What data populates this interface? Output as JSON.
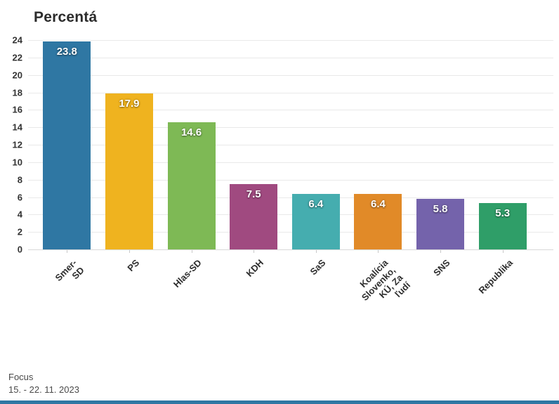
{
  "title": "Percentá",
  "footer": {
    "source": "Focus",
    "date_range": "15. - 22. 11. 2023"
  },
  "colors": {
    "title_text": "#2b2b2b",
    "axis_text": "#333333",
    "gridline": "#e9e9e9",
    "baseline": "#d8d8d8",
    "footer_text": "#4a4a4a",
    "bottom_accent_bar": "#2f77a3"
  },
  "chart_data": {
    "type": "bar",
    "title": "Percentá",
    "categories": [
      "Smer-SD",
      "PS",
      "Hlas-SD",
      "KDH",
      "SaS",
      "Koalícia Slovenko, KÚ, Za\nľudí",
      "SNS",
      "Republika"
    ],
    "values": [
      23.8,
      17.9,
      14.6,
      7.5,
      6.4,
      6.4,
      5.8,
      5.3
    ],
    "value_labels": [
      "23.8",
      "17.9",
      "14.6",
      "7.5",
      "6.4",
      "6.4",
      "5.8",
      "5.3"
    ],
    "bar_colors": [
      "#2f77a3",
      "#efb31f",
      "#7eb955",
      "#a04a80",
      "#45adaf",
      "#e18a28",
      "#7463ab",
      "#2f9e68"
    ],
    "xlabel": "",
    "ylabel": "",
    "ylim": [
      0,
      24
    ],
    "yticks": [
      0,
      2,
      4,
      6,
      8,
      10,
      12,
      14,
      16,
      18,
      20,
      22,
      24
    ],
    "grid": "horizontal",
    "legend": "none",
    "x_label_rotation_deg": -45
  }
}
